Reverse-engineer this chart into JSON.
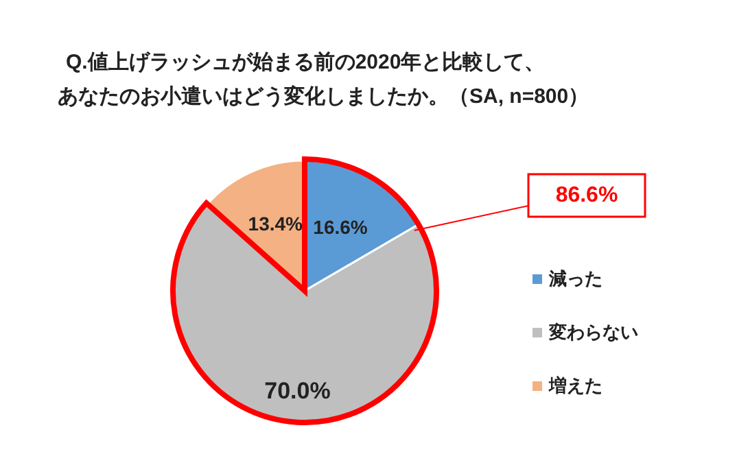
{
  "chart_data": {
    "type": "pie",
    "title": "Q.値上げラッシュが始まる前の2020年と比較して、",
    "subtitle": "あなたのお小遣いはどう変化しましたか。（SA, n=800）",
    "categories": [
      "減った",
      "変わらない",
      "増えた"
    ],
    "values": [
      16.6,
      70.0,
      13.4
    ],
    "colors": [
      "#5b9bd5",
      "#bfbfbf",
      "#f4b183"
    ],
    "value_labels": [
      "16.6%",
      "70.0%",
      "13.4%"
    ],
    "legend": "right",
    "annotations": [
      "86.6%"
    ]
  }
}
